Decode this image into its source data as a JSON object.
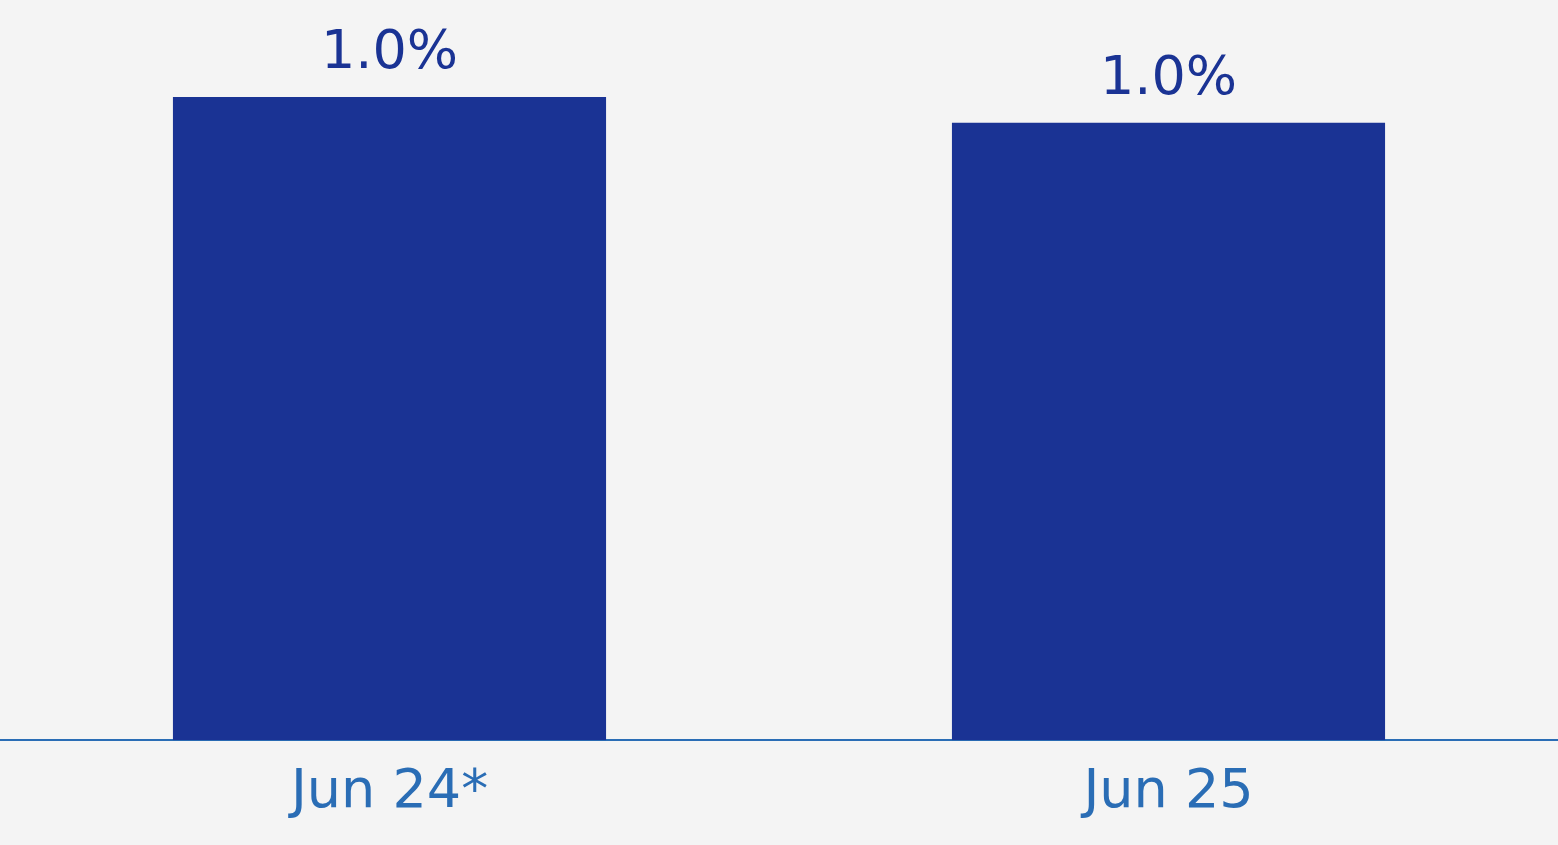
{
  "chart_data": {
    "type": "bar",
    "categories": [
      "Jun 24*",
      "Jun 25"
    ],
    "values": [
      1,
      0.96
    ],
    "value_labels": [
      "1.0%",
      "1.0%"
    ],
    "color": "#1a3394",
    "grid": false,
    "legend": false
  }
}
